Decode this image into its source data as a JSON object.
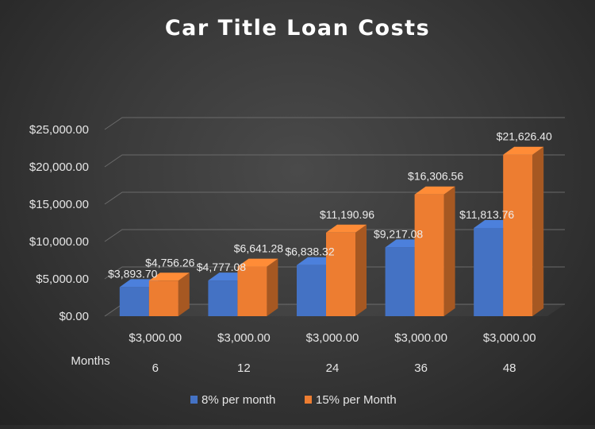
{
  "chart_data": {
    "type": "bar",
    "title": "Car Title Loan Costs",
    "categories": [
      "6",
      "12",
      "24",
      "36",
      "48"
    ],
    "principal_labels": [
      "$3,000.00",
      "$3,000.00",
      "$3,000.00",
      "$3,000.00",
      "$3,000.00"
    ],
    "row_labels": [
      "Months"
    ],
    "series": [
      {
        "name": "8% per month",
        "values": [
          3893.7,
          4777.08,
          6838.32,
          9217.08,
          11813.76
        ],
        "labels": [
          "$3,893.70",
          "$4,777.08",
          "$6,838.32",
          "$9,217.08",
          "$11,813.76"
        ],
        "color": "#4472C4"
      },
      {
        "name": "15% per Month",
        "values": [
          4756.26,
          6641.28,
          11190.96,
          16306.56,
          21626.4
        ],
        "labels": [
          "$4,756.26",
          "$6,641.28",
          "$11,190.96",
          "$16,306.56",
          "$21,626.40"
        ],
        "color": "#ED7D31"
      }
    ],
    "ylim": [
      0,
      25000
    ],
    "yticks": [
      0,
      5000,
      10000,
      15000,
      20000,
      25000
    ],
    "ytick_labels": [
      "$0.00",
      "$5,000.00",
      "$10,000.00",
      "$15,000.00",
      "$20,000.00",
      "$25,000.00"
    ],
    "grid": true,
    "legend_position": "bottom",
    "style": "3d-clustered-column"
  }
}
